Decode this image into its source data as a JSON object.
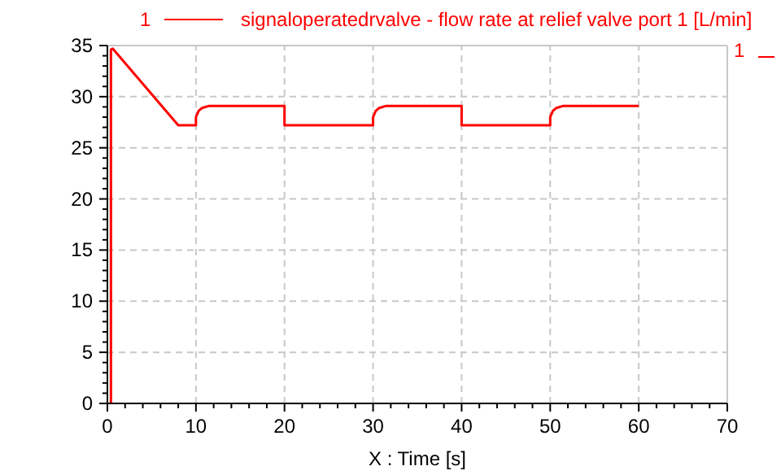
{
  "chart_data": {
    "type": "line",
    "xlabel": "X : Time [s]",
    "legend_title": "1",
    "legend": "top",
    "grid": true,
    "marker": "none",
    "line_style": "solid",
    "xlim": [
      0,
      70
    ],
    "ylim": [
      0,
      35
    ],
    "xticks": [
      0,
      {
        "value": 2,
        "label": null
      },
      {
        "value": 4,
        "label": null
      },
      {
        "value": 6,
        "label": null
      },
      {
        "value": 8,
        "label": null
      },
      10,
      {
        "value": 12,
        "label": null
      },
      {
        "value": 14,
        "label": null
      },
      {
        "value": 16,
        "label": null
      },
      {
        "value": 18,
        "label": null
      },
      20,
      {
        "value": 22,
        "label": null
      },
      {
        "value": 24,
        "label": null
      },
      {
        "value": 26,
        "label": null
      },
      {
        "value": 28,
        "label": null
      },
      30,
      {
        "value": 32,
        "label": null
      },
      {
        "value": 34,
        "label": null
      },
      {
        "value": 36,
        "label": null
      },
      {
        "value": 38,
        "label": null
      },
      40,
      {
        "value": 42,
        "label": null
      },
      {
        "value": 44,
        "label": null
      },
      {
        "value": 46,
        "label": null
      },
      {
        "value": 48,
        "label": null
      },
      50,
      {
        "value": 52,
        "label": null
      },
      {
        "value": 54,
        "label": null
      },
      {
        "value": 56,
        "label": null
      },
      {
        "value": 58,
        "label": null
      },
      60,
      {
        "value": 62,
        "label": null
      },
      {
        "value": 64,
        "label": null
      },
      {
        "value": 66,
        "label": null
      },
      {
        "value": 68,
        "label": null
      },
      70
    ],
    "yticks": [
      0,
      {
        "value": 1,
        "label": null
      },
      {
        "value": 2,
        "label": null
      },
      {
        "value": 3,
        "label": null
      },
      {
        "value": 4,
        "label": null
      },
      5,
      {
        "value": 6,
        "label": null
      },
      {
        "value": 7,
        "label": null
      },
      {
        "value": 8,
        "label": null
      },
      {
        "value": 9,
        "label": null
      },
      10,
      {
        "value": 11,
        "label": null
      },
      {
        "value": 12,
        "label": null
      },
      {
        "value": 13,
        "label": null
      },
      {
        "value": 14,
        "label": null
      },
      15,
      {
        "value": 16,
        "label": null
      },
      {
        "value": 17,
        "label": null
      },
      {
        "value": 18,
        "label": null
      },
      {
        "value": 19,
        "label": null
      },
      20,
      {
        "value": 21,
        "label": null
      },
      {
        "value": 22,
        "label": null
      },
      {
        "value": 23,
        "label": null
      },
      {
        "value": 24,
        "label": null
      },
      25,
      {
        "value": 26,
        "label": null
      },
      {
        "value": 27,
        "label": null
      },
      {
        "value": 28,
        "label": null
      },
      {
        "value": 29,
        "label": null
      },
      30,
      {
        "value": 31,
        "label": null
      },
      {
        "value": 32,
        "label": null
      },
      {
        "value": 33,
        "label": null
      },
      {
        "value": 34,
        "label": null
      },
      35
    ],
    "annotations": [
      "1"
    ],
    "series": [
      {
        "name": "signaloperatedrvalve - flow rate at relief valve port 1 [L/min]",
        "color": "#ff0000",
        "x": [
          0.4,
          0.4,
          0.6,
          8,
          10,
          10,
          10.3,
          10.7,
          11.5,
          20,
          20,
          30,
          30,
          30.3,
          30.7,
          31.5,
          40,
          40,
          50,
          50,
          50.3,
          50.7,
          51.5,
          60
        ],
        "values": [
          0,
          34.6,
          34.7,
          27.2,
          27.2,
          28.0,
          28.6,
          28.9,
          29.1,
          29.1,
          27.2,
          27.2,
          28.0,
          28.6,
          28.9,
          29.1,
          29.1,
          27.2,
          27.2,
          28.0,
          28.6,
          28.9,
          29.1,
          29.1
        ]
      }
    ]
  }
}
